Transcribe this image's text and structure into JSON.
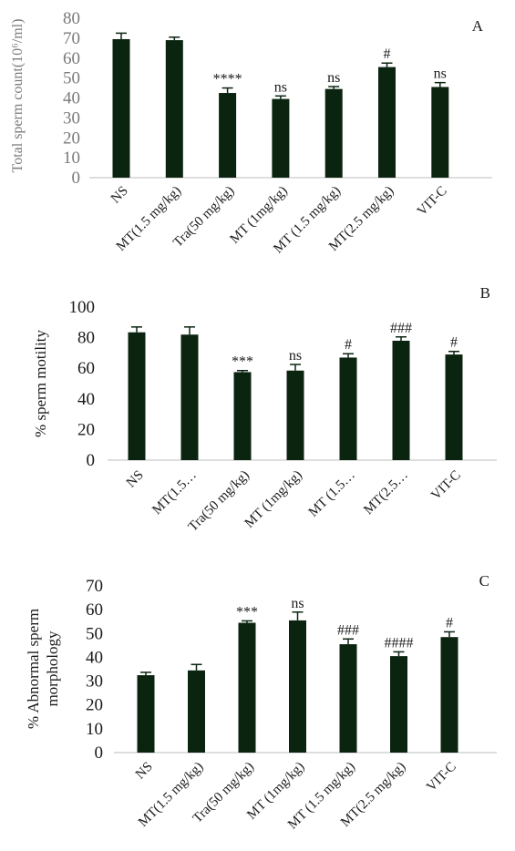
{
  "bar_color": "#0b2410",
  "chart_data": [
    {
      "type": "bar",
      "panel_label": "A",
      "ylabel": "Total sperm count(10⁶/ml)",
      "ylim": [
        0,
        80
      ],
      "yticks": [
        0,
        10,
        20,
        30,
        40,
        50,
        60,
        70,
        80
      ],
      "categories": [
        "NS",
        "MT(1.5 mg/kg)",
        "Tra(50 mg/kg)",
        "MT (1mg/kg)",
        "MT (1.5 mg/kg)",
        "MT(2.5 mg/kg)",
        "VIT-C"
      ],
      "values": [
        69.5,
        69,
        42.5,
        39.5,
        44.5,
        55.5,
        45.5
      ],
      "errors": [
        3,
        1.5,
        2.5,
        1.5,
        1.2,
        2,
        2.2
      ],
      "annotations": [
        "",
        "",
        "****",
        "ns",
        "ns",
        "#",
        "ns"
      ]
    },
    {
      "type": "bar",
      "panel_label": "B",
      "ylabel": "% sperm motility",
      "ylim": [
        0,
        100
      ],
      "yticks": [
        0,
        20,
        40,
        60,
        80,
        100
      ],
      "categories": [
        "NS",
        "MT(1.5…",
        "Tra(50 mg/kg)",
        "MT (1mg/kg)",
        "MT (1.5…",
        "MT(2.5…",
        "VIT-C"
      ],
      "values": [
        83.5,
        82,
        57.5,
        58.5,
        67,
        78,
        69
      ],
      "errors": [
        3.5,
        5,
        1,
        4,
        2.5,
        2.5,
        2
      ],
      "annotations": [
        "",
        "",
        "***",
        "ns",
        "#",
        "###",
        "#"
      ]
    },
    {
      "type": "bar",
      "panel_label": "C",
      "ylabel": "% Abnormal sperm morphology",
      "ylabel_lines": [
        "% Abnormal sperm",
        "morphology"
      ],
      "ylim": [
        0,
        70
      ],
      "yticks": [
        0,
        10,
        20,
        30,
        40,
        50,
        60,
        70
      ],
      "categories": [
        "NS",
        "MT(1.5 mg/kg)",
        "Tra(50 mg/kg)",
        "MT (1mg/kg)",
        "MT (1.5 mg/kg)",
        "MT(2.5 mg/kg)",
        "VIT-C"
      ],
      "values": [
        32.5,
        34.5,
        54.5,
        55.5,
        45.5,
        40.5,
        48.5
      ],
      "errors": [
        1.2,
        2.5,
        0.8,
        3.5,
        2.2,
        1.8,
        2.2
      ],
      "annotations": [
        "",
        "",
        "***",
        "ns",
        "###",
        "####",
        "#"
      ]
    }
  ]
}
